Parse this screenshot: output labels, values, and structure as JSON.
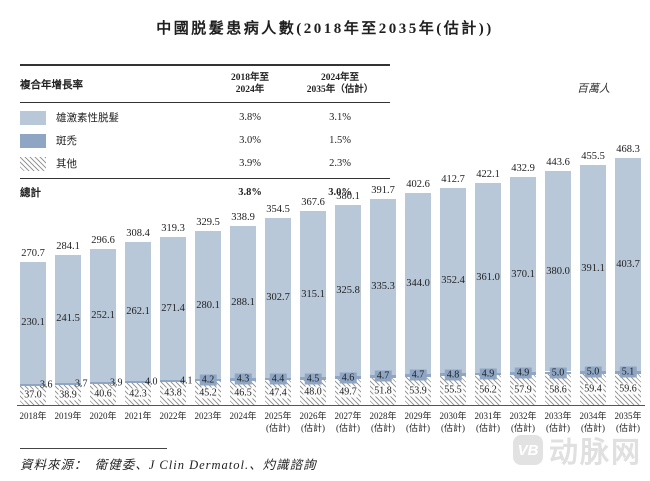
{
  "title": "中國脱髮患病人數(2018年至2035年(估計))",
  "unit_label": "百萬人",
  "cagr_table": {
    "header_label": "複合年增長率",
    "col1_line1": "2018年至",
    "col1_line2": "2024年",
    "col2_line1": "2024年至",
    "col2_line2": "2035年（估計）",
    "rows": [
      {
        "label": "雄激素性脱髮",
        "swatch": "light",
        "v1": "3.8%",
        "v2": "3.1%"
      },
      {
        "label": "斑禿",
        "swatch": "dark",
        "v1": "3.0%",
        "v2": "1.5%"
      },
      {
        "label": "其他",
        "swatch": "hatch",
        "v1": "3.9%",
        "v2": "2.3%"
      }
    ],
    "total": {
      "label": "總計",
      "v1": "3.8%",
      "v2": "3.0%"
    }
  },
  "chart_data": {
    "type": "bar",
    "stacked": true,
    "title": "中國脱髮患病人數(2018年至2035年(估計))",
    "ylabel": "百萬人",
    "legend_position": "top-left-table",
    "grid": false,
    "categories": [
      {
        "label": "2018年",
        "note": ""
      },
      {
        "label": "2019年",
        "note": ""
      },
      {
        "label": "2020年",
        "note": ""
      },
      {
        "label": "2021年",
        "note": ""
      },
      {
        "label": "2022年",
        "note": ""
      },
      {
        "label": "2023年",
        "note": ""
      },
      {
        "label": "2024年",
        "note": ""
      },
      {
        "label": "2025年",
        "note": "(估計)"
      },
      {
        "label": "2026年",
        "note": "(估計)"
      },
      {
        "label": "2027年",
        "note": "(估計)"
      },
      {
        "label": "2028年",
        "note": "(估計)"
      },
      {
        "label": "2029年",
        "note": "(估計)"
      },
      {
        "label": "2030年",
        "note": "(估計)"
      },
      {
        "label": "2031年",
        "note": "(估計)"
      },
      {
        "label": "2032年",
        "note": "(估計)"
      },
      {
        "label": "2033年",
        "note": "(估計)"
      },
      {
        "label": "2034年",
        "note": "(估計)"
      },
      {
        "label": "2035年",
        "note": "(估計)"
      }
    ],
    "series": [
      {
        "name": "雄激素性脱髮",
        "values": [
          230.1,
          241.5,
          252.1,
          262.1,
          271.4,
          280.1,
          288.1,
          302.7,
          315.1,
          325.8,
          335.3,
          344.0,
          352.4,
          361.0,
          370.1,
          380.0,
          391.1,
          403.7
        ]
      },
      {
        "name": "斑禿",
        "values": [
          3.6,
          3.7,
          3.9,
          4.0,
          4.1,
          4.2,
          4.3,
          4.4,
          4.5,
          4.6,
          4.7,
          4.7,
          4.8,
          4.9,
          4.9,
          5.0,
          5.0,
          5.1
        ]
      },
      {
        "name": "其他",
        "values": [
          37.0,
          38.9,
          40.6,
          42.3,
          43.8,
          45.2,
          46.5,
          47.4,
          48.0,
          49.7,
          51.8,
          53.9,
          55.5,
          56.2,
          57.9,
          58.6,
          59.4,
          59.6
        ]
      }
    ],
    "totals": [
      270.7,
      284.1,
      296.6,
      308.4,
      319.3,
      329.5,
      338.9,
      354.5,
      367.6,
      380.1,
      391.7,
      402.6,
      412.7,
      422.1,
      432.9,
      443.6,
      455.5,
      468.3
    ],
    "ylim": [
      0,
      500
    ]
  },
  "source": "資料來源：　衛健委、J Clin Dermatol.、灼識諮詢",
  "watermark": {
    "logo": "VB",
    "text": "动脉网"
  },
  "colors": {
    "androgenetic": "#b9c8d9",
    "alopecia_areata": "#8ea6c4",
    "others_hatch_line": "#9a9a9a",
    "text": "#222222",
    "watermark": "#e0e0e0"
  }
}
